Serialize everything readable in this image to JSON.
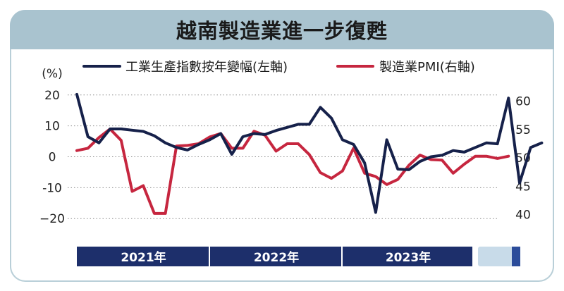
{
  "title": "越南製造業進一步復甦",
  "chart_data": {
    "type": "line",
    "left_axis": {
      "unit_label": "(%)",
      "ylim": [
        -22,
        22
      ],
      "ticks": [
        20,
        10,
        0,
        -10,
        -20
      ],
      "tick_labels": [
        "20",
        "10",
        "0",
        "-10",
        "−20"
      ]
    },
    "right_axis": {
      "ylim": [
        38.2,
        62.2
      ],
      "ticks": [
        60,
        55,
        50,
        45,
        40
      ],
      "tick_labels": [
        "60",
        "55",
        "50",
        "45",
        "40"
      ]
    },
    "grid": "horizontal-dotted",
    "legend_placement": "top",
    "x_axis": {
      "periods": [
        "2021年",
        "2022年",
        "2023年"
      ],
      "months_per_period": 12
    },
    "series": [
      {
        "name": "工業生產指數按年變幅(左軸)",
        "axis": "left",
        "color": "#16214a",
        "values": [
          20.2,
          6.5,
          4.5,
          9.0,
          9.0,
          8.6,
          8.2,
          6.8,
          4.5,
          3.0,
          2.2,
          4.0,
          5.5,
          7.5,
          0.8,
          6.5,
          7.5,
          7.2,
          8.5,
          9.5,
          10.5,
          10.5,
          16.0,
          12.5,
          5.5,
          4.0,
          -2.0,
          -18.0,
          5.5,
          -4.0,
          -4.2,
          -1.5,
          0.0,
          0.5,
          2.0,
          1.5,
          3.0,
          4.5,
          4.2,
          19.0,
          -8.5,
          3.0,
          4.5
        ]
      },
      {
        "name": "製造業PMI(右軸)",
        "axis": "right",
        "color": "#c6263f",
        "values": [
          51.3,
          51.7,
          53.6,
          55.1,
          53.1,
          44.1,
          45.1,
          40.2,
          40.2,
          52.1,
          52.2,
          52.5,
          53.7,
          54.3,
          51.7,
          51.7,
          54.7,
          54.0,
          51.2,
          52.5,
          52.5,
          50.6,
          47.4,
          46.4,
          47.7,
          51.7,
          47.3,
          46.7,
          45.3,
          46.2,
          48.7,
          50.5,
          49.7,
          49.6,
          47.3,
          48.9,
          50.3,
          50.3,
          49.9,
          50.3
        ]
      }
    ]
  },
  "footer": {
    "years": [
      "2021年",
      "2022年",
      "2023年"
    ]
  }
}
